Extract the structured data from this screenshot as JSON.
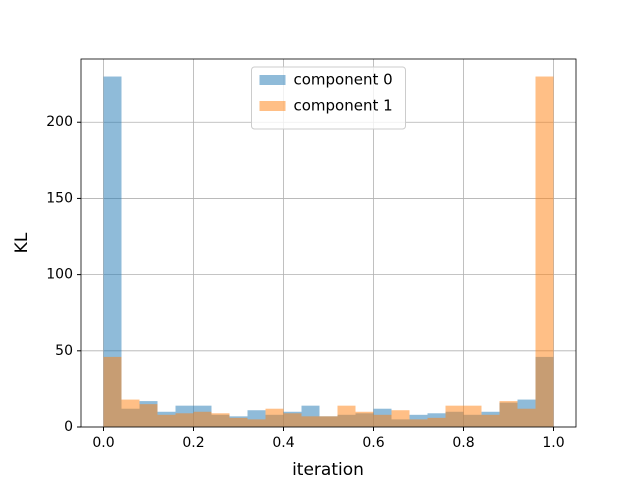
{
  "chart_data": {
    "type": "histogram",
    "xlabel": "iteration",
    "ylabel": "KL",
    "bins": [
      0,
      0.04,
      0.08,
      0.12,
      0.16,
      0.2,
      0.24,
      0.28,
      0.32,
      0.36,
      0.4,
      0.44,
      0.48,
      0.52,
      0.56,
      0.6,
      0.64,
      0.68,
      0.72,
      0.76,
      0.8,
      0.84,
      0.88,
      0.92,
      0.96,
      1.0
    ],
    "series": [
      {
        "name": "component 0",
        "color": "#1f77b4",
        "values": [
          230,
          12,
          17,
          10,
          14,
          14,
          8,
          7,
          11,
          8,
          10,
          14,
          7,
          8,
          9,
          12,
          5,
          8,
          9,
          10,
          8,
          10,
          16,
          18,
          46
        ]
      },
      {
        "name": "component 1",
        "color": "#ff7f0e",
        "values": [
          46,
          18,
          15,
          8,
          9,
          10,
          9,
          6,
          5,
          12,
          9,
          7,
          7,
          14,
          10,
          8,
          11,
          5,
          6,
          14,
          14,
          8,
          17,
          12,
          230
        ]
      }
    ],
    "alpha": 0.5,
    "xlim": [
      -0.05,
      1.05
    ],
    "ylim": [
      0,
      241.5
    ],
    "xticks": [
      {
        "value": 0,
        "label": "0.0"
      },
      0.2,
      0.4,
      0.6,
      0.8,
      {
        "value": 1,
        "label": "1.0"
      }
    ],
    "yticks": [
      0,
      50,
      100,
      150,
      200
    ],
    "grid": true,
    "legend": "upper center"
  }
}
